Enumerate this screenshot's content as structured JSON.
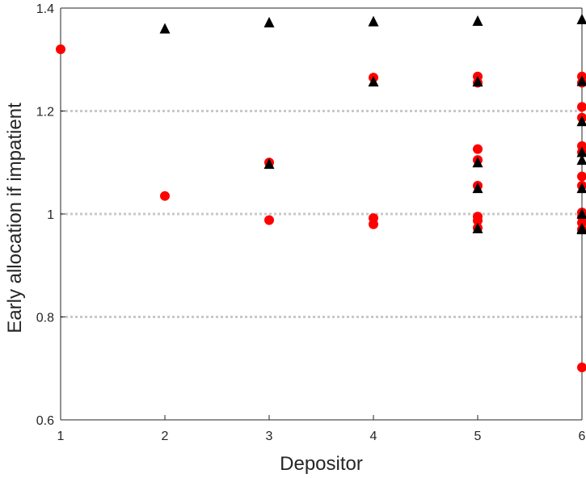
{
  "chart_data": {
    "type": "scatter",
    "title": "",
    "xlabel": "Depositor",
    "ylabel": "Early allocation if impatient",
    "xlim": [
      1,
      6
    ],
    "ylim": [
      0.6,
      1.4
    ],
    "xticks": [
      1,
      2,
      3,
      4,
      5,
      6
    ],
    "xtick_labels": [
      "1",
      "2",
      "3",
      "4",
      "5",
      "6"
    ],
    "yticks": [
      0.6,
      0.8,
      1.0,
      1.2,
      1.4
    ],
    "ytick_labels": [
      "0.6",
      "0.8",
      "1",
      "1.2",
      "1.4"
    ],
    "reference_lines": [
      0.8,
      1.0,
      1.2
    ],
    "grid": false,
    "colors": {
      "circle_series": "#ff0000",
      "triangle_series": "#000000",
      "reference_line": "#c8c8c8",
      "axis": "#262626"
    },
    "series": [
      {
        "marker": "circle",
        "x": [
          1,
          2,
          3,
          3,
          4,
          4,
          4,
          5,
          5,
          5,
          5,
          5,
          5,
          5,
          5,
          6,
          6,
          6,
          6,
          6,
          6,
          6,
          6,
          6,
          6,
          6,
          6,
          6
        ],
        "y": [
          1.32,
          1.035,
          1.1,
          0.988,
          1.265,
          0.992,
          0.98,
          1.267,
          1.255,
          1.126,
          1.105,
          1.055,
          0.995,
          0.987,
          0.973,
          1.267,
          1.255,
          1.208,
          1.187,
          1.132,
          1.12,
          1.073,
          1.055,
          1.003,
          0.995,
          0.983,
          0.97,
          0.702
        ]
      },
      {
        "marker": "triangle",
        "x": [
          2,
          3,
          3,
          4,
          4,
          5,
          5,
          5,
          5,
          5,
          6,
          6,
          6,
          6,
          6,
          6,
          6,
          6,
          6
        ],
        "y": [
          1.36,
          1.372,
          1.097,
          1.374,
          1.257,
          0.972,
          1.375,
          1.257,
          1.1,
          1.05,
          0.972,
          1.378,
          1.258,
          1.18,
          1.12,
          1.105,
          1.05,
          1.0,
          0.97
        ]
      }
    ]
  }
}
